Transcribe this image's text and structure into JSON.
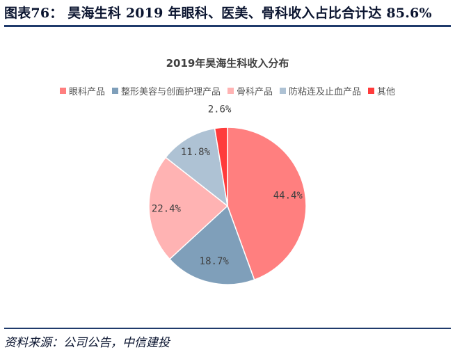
{
  "figure": {
    "title": "图表76： 昊海生科 2019 年眼科、医美、骨科收入占比合计达 85.6%",
    "source": "资料来源：公司公告，中信建投"
  },
  "chart_data": {
    "type": "pie",
    "title": "2019年昊海生科收入分布",
    "legend_position": "top",
    "slices": [
      {
        "name": "眼科产品",
        "value": 44.4,
        "label": "44.4%",
        "color": "#ff7f7f"
      },
      {
        "name": "整形美容与创面护理产品",
        "value": 18.7,
        "label": "18.7%",
        "color": "#7f9fba"
      },
      {
        "name": "骨科产品",
        "value": 22.4,
        "label": "22.4%",
        "color": "#ffb3b3"
      },
      {
        "name": "防粘连及止血产品",
        "value": 11.8,
        "label": "11.8%",
        "color": "#aec2d4"
      },
      {
        "name": "其他",
        "value": 2.6,
        "label": "2.6%",
        "color": "#ff3b3b"
      }
    ]
  }
}
